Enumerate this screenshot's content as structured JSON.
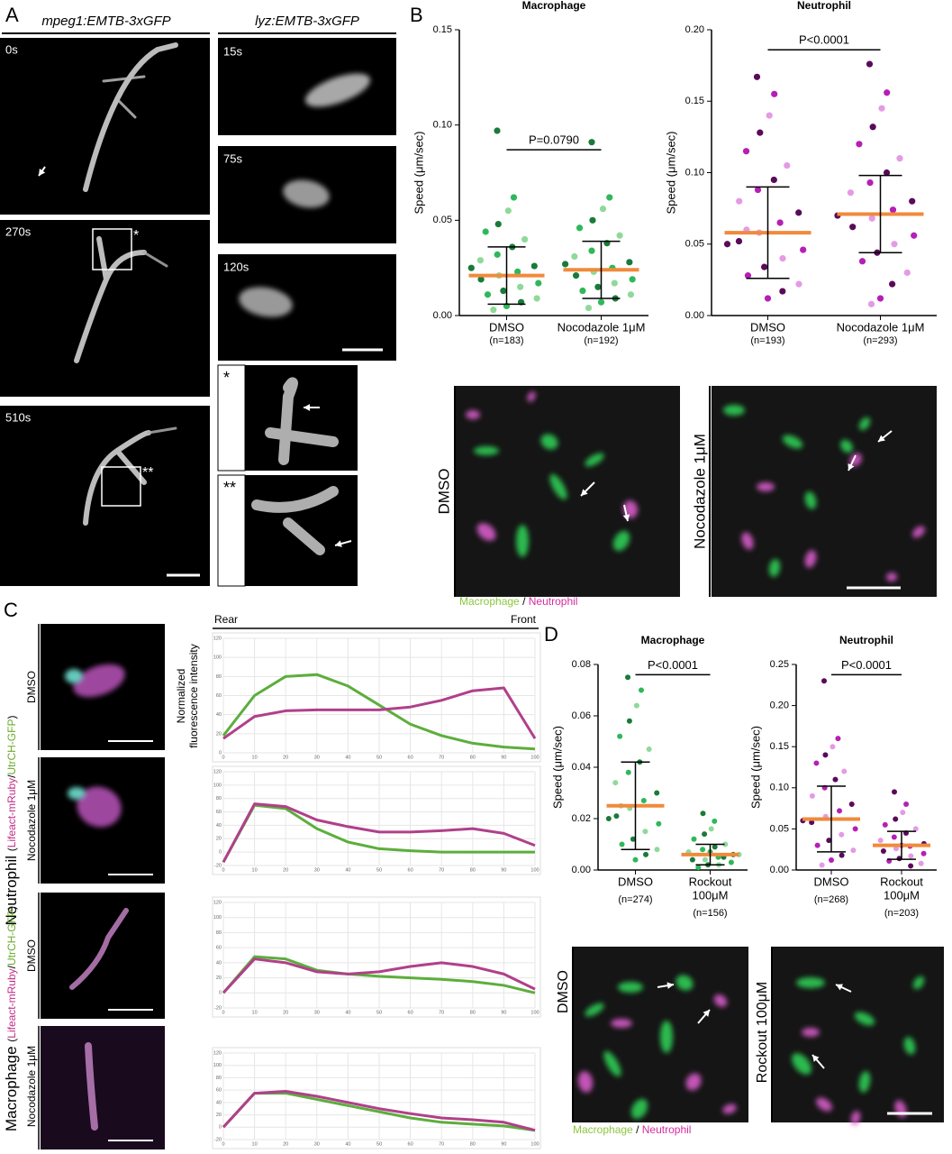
{
  "panel_labels": [
    "A",
    "B",
    "C",
    "D"
  ],
  "panel_a": {
    "headers": [
      "mpeg1:EMTB-3xGFP",
      "lyz:EMTB-3xGFP"
    ],
    "times_left": [
      "0s",
      "270s",
      "510s"
    ],
    "times_right": [
      "15s",
      "75s",
      "120s"
    ],
    "inset_marks": [
      "*",
      "**"
    ]
  },
  "panel_b": {
    "image_labels": [
      "DMSO",
      "Nocodazole  1μM"
    ],
    "legend": [
      "Macrophage",
      "Neutrophil"
    ],
    "legend_sep": "/"
  },
  "panel_c": {
    "rear": "Rear",
    "front": "Front",
    "ylabel": [
      "Normalized",
      "fluorescence intensity"
    ],
    "row_labels": [
      "DMSO",
      "Nocodazole 1μM",
      "DMSO",
      "Nocodazole 1μM"
    ],
    "group_labels": [
      "Neutrophil",
      "Macrophage"
    ],
    "stain": [
      "(",
      "Lifeact-mRuby",
      "/",
      "UtrCH-GFP",
      ")"
    ]
  },
  "panel_d": {
    "image_labels": [
      "DMSO",
      "Rockout 100μM"
    ],
    "legend": [
      "Macrophage",
      "Neutrophil"
    ],
    "legend_sep": "/"
  },
  "chart_data": [
    {
      "type": "strip",
      "title": "Macrophage",
      "ylabel": "Speed (μm/sec)",
      "categories": [
        [
          "DMSO"
        ],
        [
          "Nocodazole 1μM"
        ]
      ],
      "n_labels": [
        "(n=183)",
        "(n=192)"
      ],
      "values": [
        [
          0.097,
          0.062,
          0.055,
          0.048,
          0.044,
          0.04,
          0.036,
          0.032,
          0.029,
          0.026,
          0.023,
          0.021,
          0.019,
          0.017,
          0.015,
          0.013,
          0.011,
          0.009,
          0.007,
          0.005,
          0.003,
          0.025
        ],
        [
          0.091,
          0.062,
          0.056,
          0.05,
          0.046,
          0.042,
          0.038,
          0.034,
          0.031,
          0.028,
          0.025,
          0.023,
          0.021,
          0.019,
          0.017,
          0.015,
          0.013,
          0.011,
          0.009,
          0.007,
          0.004,
          0.027
        ]
      ],
      "means": [
        0.021,
        0.024
      ],
      "sd": [
        0.015,
        0.015
      ],
      "annotation": "P=0.0790",
      "point_colors": [
        "#1a7a3a",
        "#2fb85a",
        "#8fd99a"
      ],
      "mean_color": "#f08a3c",
      "ylim": [
        0,
        0.15
      ],
      "yticks": [
        {
          "value": 0,
          "label": "0.00"
        },
        0.05,
        {
          "value": 0.1,
          "label": "0.10"
        },
        0.15
      ]
    },
    {
      "type": "strip",
      "title": "Neutrophil",
      "ylabel": "Speed (μm/sec)",
      "categories": [
        [
          "DMSO"
        ],
        [
          "Nocodazole 1μM"
        ]
      ],
      "n_labels": [
        "(n=193)",
        "(n=293)"
      ],
      "values": [
        [
          0.167,
          0.155,
          0.14,
          0.128,
          0.115,
          0.105,
          0.095,
          0.088,
          0.08,
          0.072,
          0.065,
          0.058,
          0.052,
          0.046,
          0.04,
          0.034,
          0.028,
          0.022,
          0.017,
          0.012,
          0.06,
          0.05
        ],
        [
          0.176,
          0.156,
          0.145,
          0.132,
          0.12,
          0.11,
          0.1,
          0.093,
          0.086,
          0.08,
          0.074,
          0.068,
          0.062,
          0.056,
          0.05,
          0.044,
          0.038,
          0.03,
          0.022,
          0.012,
          0.008,
          0.07
        ]
      ],
      "means": [
        0.058,
        0.071
      ],
      "sd": [
        0.032,
        0.027
      ],
      "annotation": "P<0.0001",
      "point_colors": [
        "#5a0a5a",
        "#b51fb5",
        "#e59ae5"
      ],
      "mean_color": "#f08a3c",
      "ylim": [
        0,
        0.2
      ],
      "yticks": [
        {
          "value": 0,
          "label": "0.00"
        },
        0.05,
        {
          "value": 0.1,
          "label": "0.10"
        },
        0.15,
        {
          "value": 0.2,
          "label": "0.20"
        }
      ]
    },
    {
      "type": "strip",
      "title": "Macrophage",
      "ylabel": "Speed (μm/sec)",
      "categories": [
        [
          "DMSO"
        ],
        [
          "Rockout",
          "100μM"
        ]
      ],
      "n_labels": [
        "(n=274)",
        "(n=156)"
      ],
      "values": [
        [
          0.075,
          0.07,
          0.064,
          0.058,
          0.052,
          0.047,
          0.042,
          0.038,
          0.034,
          0.03,
          0.027,
          0.024,
          0.021,
          0.018,
          0.015,
          0.012,
          0.01,
          0.008,
          0.006,
          0.004,
          0.025,
          0.02
        ],
        [
          0.022,
          0.019,
          0.016,
          0.014,
          0.012,
          0.01,
          0.009,
          0.008,
          0.007,
          0.006,
          0.005,
          0.004,
          0.004,
          0.003,
          0.002,
          0.002,
          0.001,
          0.006,
          0.005,
          0.007
        ]
      ],
      "means": [
        0.025,
        0.006
      ],
      "sd": [
        0.017,
        0.004
      ],
      "annotation": "P<0.0001",
      "point_colors": [
        "#1a7a3a",
        "#2fb85a",
        "#8fd99a"
      ],
      "mean_color": "#f08a3c",
      "ylim": [
        0,
        0.08
      ],
      "yticks": [
        {
          "value": 0,
          "label": "0.00"
        },
        0.02,
        0.04,
        0.06,
        0.08
      ]
    },
    {
      "type": "strip",
      "title": "Neutrophil",
      "ylabel": "Speed (μm/sec)",
      "categories": [
        [
          "DMSO"
        ],
        [
          "Rockout",
          "100μM"
        ]
      ],
      "n_labels": [
        "(n=268)",
        "(n=203)"
      ],
      "values": [
        [
          0.23,
          0.16,
          0.15,
          0.14,
          0.13,
          0.12,
          0.11,
          0.1,
          0.09,
          0.08,
          0.072,
          0.065,
          0.058,
          0.05,
          0.043,
          0.036,
          0.03,
          0.024,
          0.018,
          0.012,
          0.006,
          0.06
        ],
        [
          0.095,
          0.08,
          0.07,
          0.062,
          0.055,
          0.05,
          0.045,
          0.04,
          0.036,
          0.032,
          0.029,
          0.026,
          0.023,
          0.02,
          0.017,
          0.014,
          0.011,
          0.008,
          0.005,
          0.03
        ]
      ],
      "means": [
        0.062,
        0.03
      ],
      "sd": [
        0.04,
        0.017
      ],
      "annotation": "P<0.0001",
      "point_colors": [
        "#5a0a5a",
        "#b51fb5",
        "#e59ae5"
      ],
      "mean_color": "#f08a3c",
      "ylim": [
        0,
        0.25
      ],
      "yticks": [
        {
          "value": 0,
          "label": "0.00"
        },
        0.05,
        {
          "value": 0.1,
          "label": "0.10"
        },
        0.15,
        {
          "value": 0.2,
          "label": "0.20"
        },
        0.25
      ]
    },
    {
      "type": "line",
      "x": [
        0,
        10,
        20,
        30,
        40,
        50,
        60,
        70,
        80,
        90,
        100
      ],
      "series": [
        {
          "color": "#5cae3c",
          "values": [
            18,
            60,
            80,
            82,
            70,
            50,
            30,
            18,
            10,
            6,
            4
          ]
        },
        {
          "color": "#b0408a",
          "values": [
            15,
            38,
            44,
            45,
            45,
            45,
            48,
            55,
            65,
            68,
            15
          ]
        }
      ],
      "xlim": [
        0,
        100
      ],
      "xticks": [
        0,
        10,
        20,
        30,
        40,
        50,
        60,
        70,
        80,
        90,
        100
      ],
      "ylim": [
        0,
        120
      ],
      "yticks": [
        0,
        20,
        40,
        60,
        80,
        100,
        120
      ],
      "grid": true
    },
    {
      "type": "line",
      "x": [
        0,
        10,
        20,
        30,
        40,
        50,
        60,
        70,
        80,
        90,
        100
      ],
      "series": [
        {
          "color": "#5cae3c",
          "values": [
            -15,
            70,
            65,
            35,
            15,
            5,
            2,
            0,
            0,
            0,
            0
          ]
        },
        {
          "color": "#b0408a",
          "values": [
            -15,
            72,
            68,
            48,
            38,
            30,
            30,
            32,
            35,
            28,
            10
          ]
        }
      ],
      "xlim": [
        0,
        100
      ],
      "xticks": [
        0,
        10,
        20,
        30,
        40,
        50,
        60,
        70,
        80,
        90,
        100
      ],
      "ylim": [
        -20,
        120
      ],
      "yticks": [
        -20,
        0,
        20,
        40,
        60,
        80,
        100,
        120
      ],
      "grid": true
    },
    {
      "type": "line",
      "x": [
        0,
        10,
        20,
        30,
        40,
        50,
        60,
        70,
        80,
        90,
        100
      ],
      "series": [
        {
          "color": "#5cae3c",
          "values": [
            0,
            48,
            45,
            30,
            25,
            22,
            20,
            18,
            15,
            10,
            0
          ]
        },
        {
          "color": "#b0408a",
          "values": [
            0,
            45,
            40,
            28,
            25,
            28,
            35,
            40,
            35,
            25,
            5
          ]
        }
      ],
      "xlim": [
        0,
        100
      ],
      "xticks": [
        0,
        10,
        20,
        30,
        40,
        50,
        60,
        70,
        80,
        90,
        100
      ],
      "ylim": [
        -20,
        120
      ],
      "yticks": [
        -20,
        0,
        20,
        40,
        60,
        80,
        100,
        120
      ],
      "grid": true
    },
    {
      "type": "line",
      "x": [
        0,
        10,
        20,
        30,
        40,
        50,
        60,
        70,
        80,
        90,
        100
      ],
      "series": [
        {
          "color": "#5cae3c",
          "values": [
            0,
            55,
            55,
            45,
            35,
            25,
            15,
            8,
            5,
            2,
            -5
          ]
        },
        {
          "color": "#b0408a",
          "values": [
            0,
            55,
            58,
            50,
            40,
            30,
            22,
            15,
            12,
            8,
            -5
          ]
        }
      ],
      "xlim": [
        0,
        100
      ],
      "xticks": [
        0,
        10,
        20,
        30,
        40,
        50,
        60,
        70,
        80,
        90,
        100
      ],
      "ylim": [
        -20,
        120
      ],
      "yticks": [
        -20,
        0,
        20,
        40,
        60,
        80,
        100,
        120
      ],
      "grid": true
    }
  ]
}
